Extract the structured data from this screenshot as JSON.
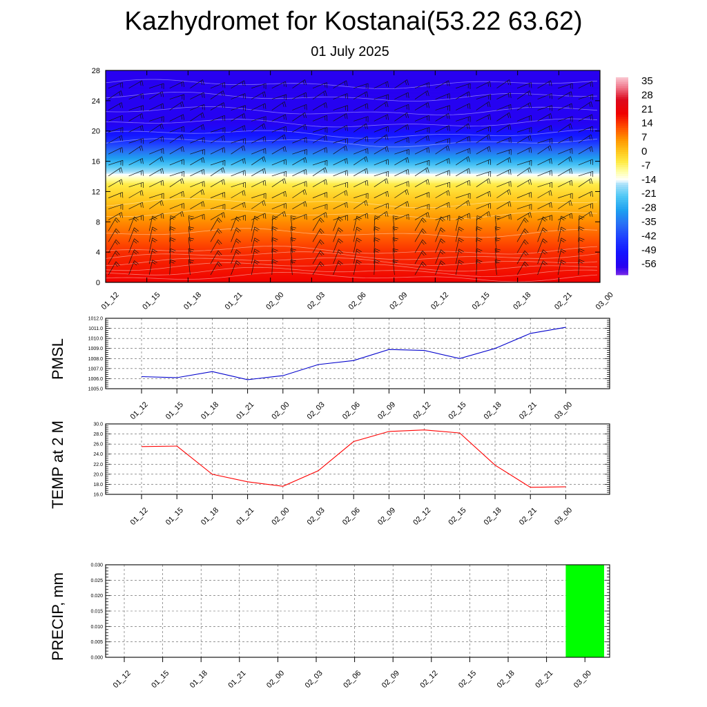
{
  "title": "Kazhydromet for Kostanai(53.22 63.62)",
  "subtitle": "01 July 2025",
  "time_labels": [
    "01_12",
    "01_15",
    "01_18",
    "01_21",
    "02_00",
    "02_03",
    "02_06",
    "02_09",
    "02_12",
    "02_15",
    "02_18",
    "02_21",
    "03_00"
  ],
  "colors": {
    "pmsl_line": "#0000cc",
    "temp_line": "#ff0000",
    "precip_bar": "#00ff00"
  },
  "chart_data": [
    {
      "type": "heatmap",
      "name": "vertical-cross-section",
      "x": [
        "01_12",
        "01_15",
        "01_18",
        "01_21",
        "02_00",
        "02_03",
        "02_06",
        "02_09",
        "02_12",
        "02_15",
        "02_18",
        "02_21",
        "03_00"
      ],
      "yticks": [
        0,
        4,
        8,
        12,
        16,
        20,
        24,
        28
      ],
      "ylim": [
        0,
        28
      ],
      "colorbar_ticks": [
        35,
        28,
        21,
        14,
        7,
        0,
        -7,
        -14,
        -21,
        -28,
        -35,
        -42,
        -49,
        -56
      ],
      "colorbar_range": [
        -60,
        38
      ],
      "temperature_profile": [
        {
          "level": 0,
          "value": 20
        },
        {
          "level": 4,
          "value": 16
        },
        {
          "level": 8,
          "value": 8
        },
        {
          "level": 11,
          "value": 1
        },
        {
          "level": 13,
          "value": -4
        },
        {
          "level": 15,
          "value": -18
        },
        {
          "level": 17,
          "value": -32
        },
        {
          "level": 19,
          "value": -46
        },
        {
          "level": 21,
          "value": -55
        },
        {
          "level": 28,
          "value": -56
        }
      ],
      "wind_barbs": true,
      "grid": false
    },
    {
      "type": "line",
      "name": "pmsl",
      "ylabel": "PMSL",
      "x": [
        "01_12",
        "01_15",
        "01_18",
        "01_21",
        "02_00",
        "02_03",
        "02_06",
        "02_09",
        "02_12",
        "02_15",
        "02_18",
        "02_21",
        "03_00"
      ],
      "values": [
        1006.2,
        1006.1,
        1006.7,
        1005.9,
        1006.3,
        1007.4,
        1007.8,
        1008.9,
        1008.8,
        1008.0,
        1009.0,
        1010.5,
        1011.1
      ],
      "ylim": [
        1005.0,
        1012.0
      ],
      "yticks": [
        "1005.0",
        "1006.0",
        "1007.0",
        "1008.0",
        "1009.0",
        "1010.0",
        "1011.0",
        "1012.0"
      ],
      "grid": true
    },
    {
      "type": "line",
      "name": "temp-2m",
      "ylabel": "TEMP at 2 M",
      "x": [
        "01_12",
        "01_15",
        "01_18",
        "01_21",
        "02_00",
        "02_03",
        "02_06",
        "02_09",
        "02_12",
        "02_15",
        "02_18",
        "02_21",
        "03_00"
      ],
      "values": [
        25.5,
        25.6,
        20.0,
        18.5,
        17.6,
        20.7,
        26.5,
        28.5,
        28.8,
        28.2,
        21.8,
        17.4,
        17.5
      ],
      "ylim": [
        16.0,
        30.0
      ],
      "yticks": [
        "16.0",
        "18.0",
        "20.0",
        "22.0",
        "24.0",
        "26.0",
        "28.0",
        "30.0"
      ],
      "grid": true
    },
    {
      "type": "bar",
      "name": "precip",
      "ylabel": "PRECIP, mm",
      "x": [
        "01_12",
        "01_15",
        "01_18",
        "01_21",
        "02_00",
        "02_03",
        "02_06",
        "02_09",
        "02_12",
        "02_15",
        "02_18",
        "02_21",
        "03_00"
      ],
      "values": [
        0,
        0,
        0,
        0,
        0,
        0,
        0,
        0,
        0,
        0,
        0,
        0,
        0.03
      ],
      "ylim": [
        0,
        0.03
      ],
      "yticks": [
        "0.000",
        "0.005",
        "0.010",
        "0.015",
        "0.020",
        "0.025",
        "0.030"
      ],
      "grid": true
    }
  ]
}
